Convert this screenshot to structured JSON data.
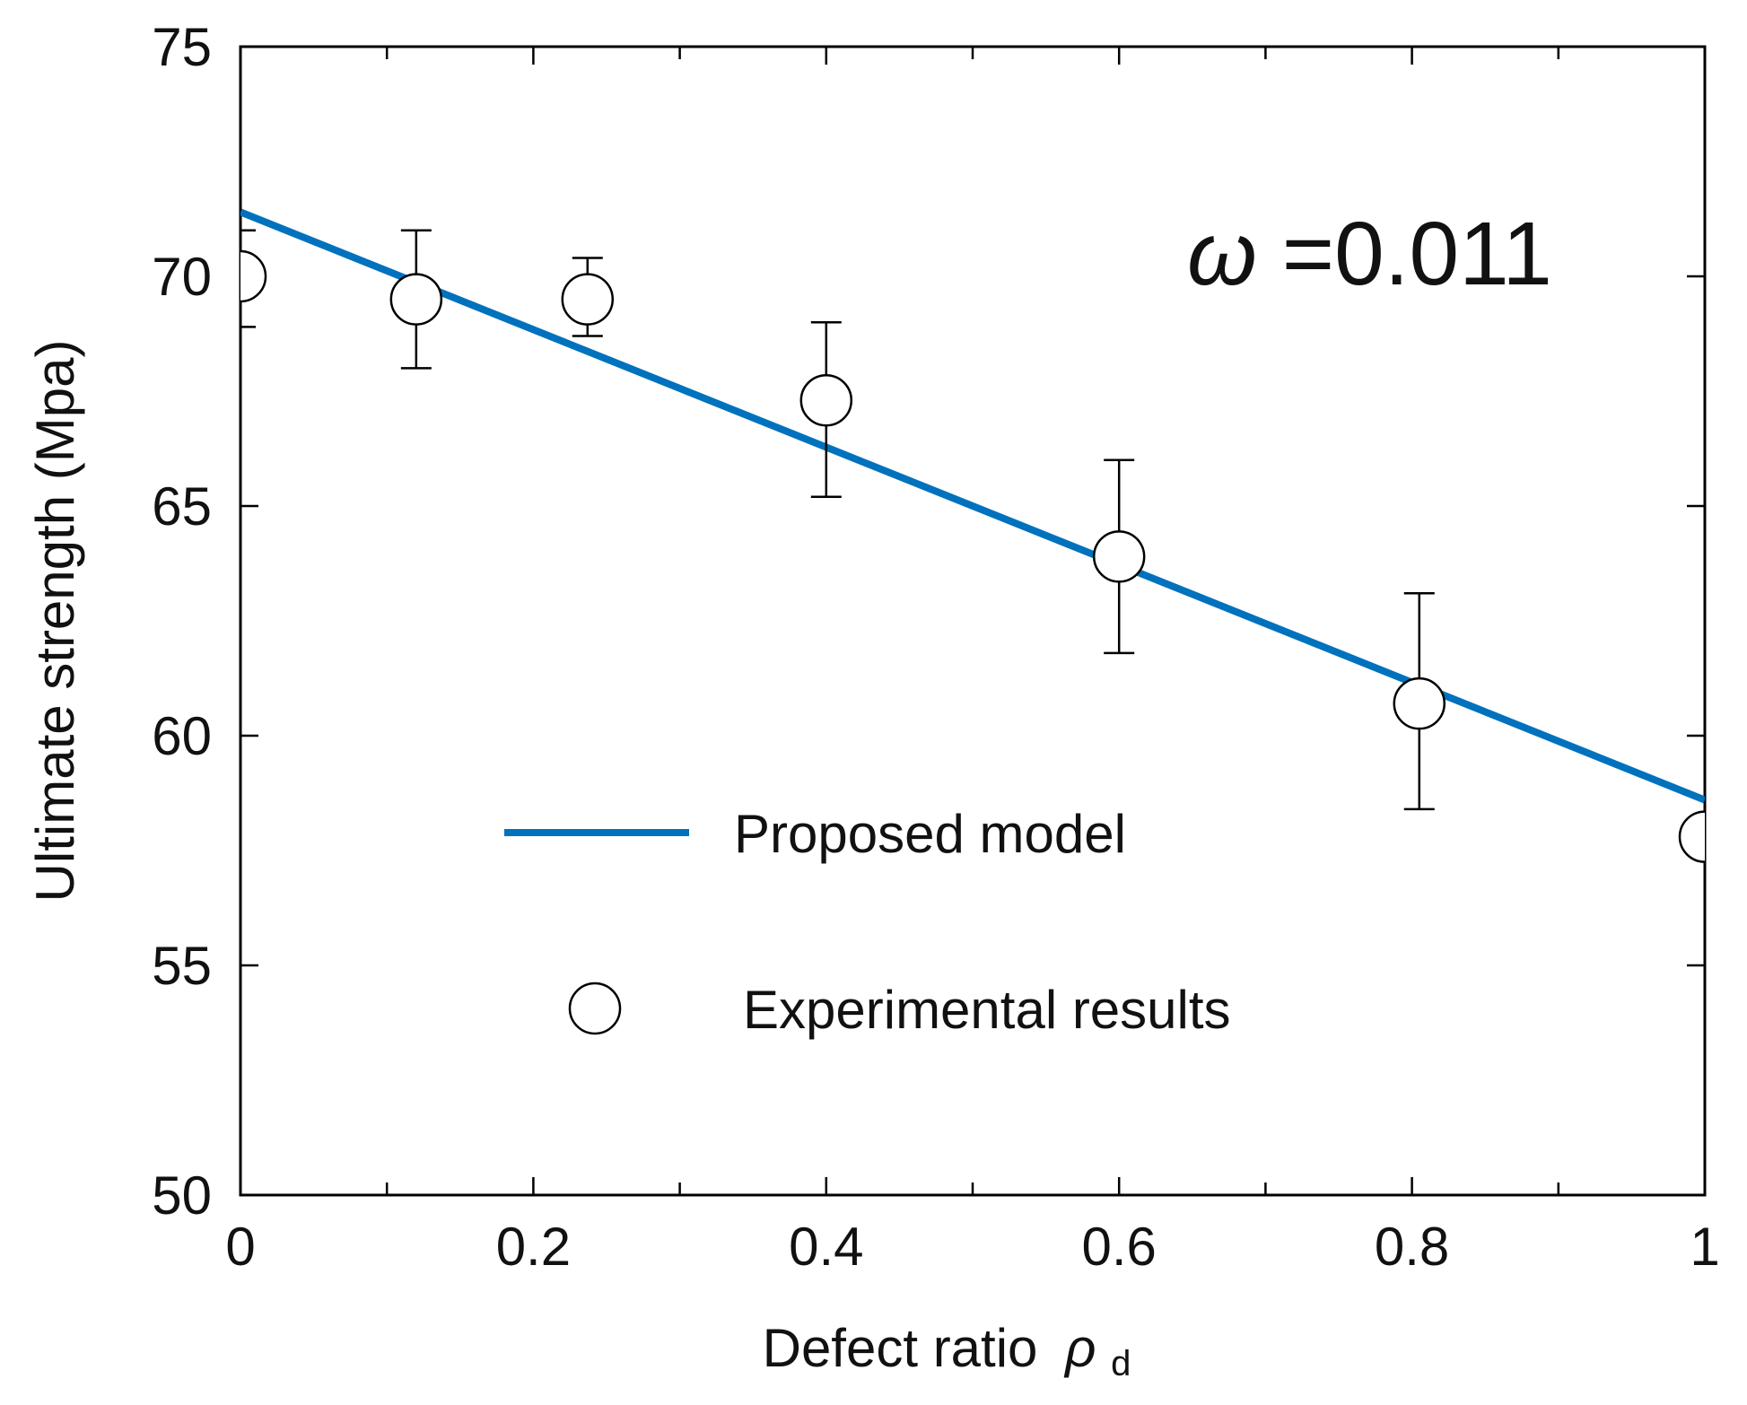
{
  "chart_data": {
    "type": "scatter",
    "title": "",
    "xlabel": "Defect ratio",
    "xlabel_symbol": "ρ",
    "xlabel_subscript": "d",
    "ylabel": "Ultimate strength (Mpa)",
    "xlim": [
      0,
      1
    ],
    "ylim": [
      50,
      75
    ],
    "x_ticks": [
      0,
      0.2,
      0.4,
      0.6,
      0.8,
      1
    ],
    "x_tick_labels": [
      "0",
      "0.2",
      "0.4",
      "0.6",
      "0.8",
      "1"
    ],
    "x_minor_ticks": [
      0.1,
      0.3,
      0.5,
      0.7,
      0.9
    ],
    "y_ticks": [
      50,
      55,
      60,
      65,
      70,
      75
    ],
    "y_tick_labels": [
      "50",
      "55",
      "60",
      "65",
      "70",
      "75"
    ],
    "grid": false,
    "legend_position": "lower-center",
    "annotation": {
      "symbol": "ω",
      "text": "=0.011"
    },
    "series": [
      {
        "name": "Proposed model",
        "kind": "line",
        "color": "#0072BD",
        "x": [
          0,
          1
        ],
        "y": [
          71.4,
          58.6
        ]
      },
      {
        "name": "Experimental results",
        "kind": "scatter",
        "marker": "open-circle",
        "color": "#000000",
        "x": [
          0,
          0.12,
          0.237,
          0.4,
          0.6,
          0.805,
          1
        ],
        "y": [
          70.0,
          69.5,
          69.5,
          67.3,
          63.9,
          60.7,
          57.8
        ],
        "err_low": [
          68.9,
          68.0,
          68.7,
          65.2,
          61.8,
          58.4,
          null
        ],
        "err_high": [
          71.0,
          71.0,
          70.4,
          69.0,
          66.0,
          63.1,
          null
        ]
      }
    ]
  }
}
